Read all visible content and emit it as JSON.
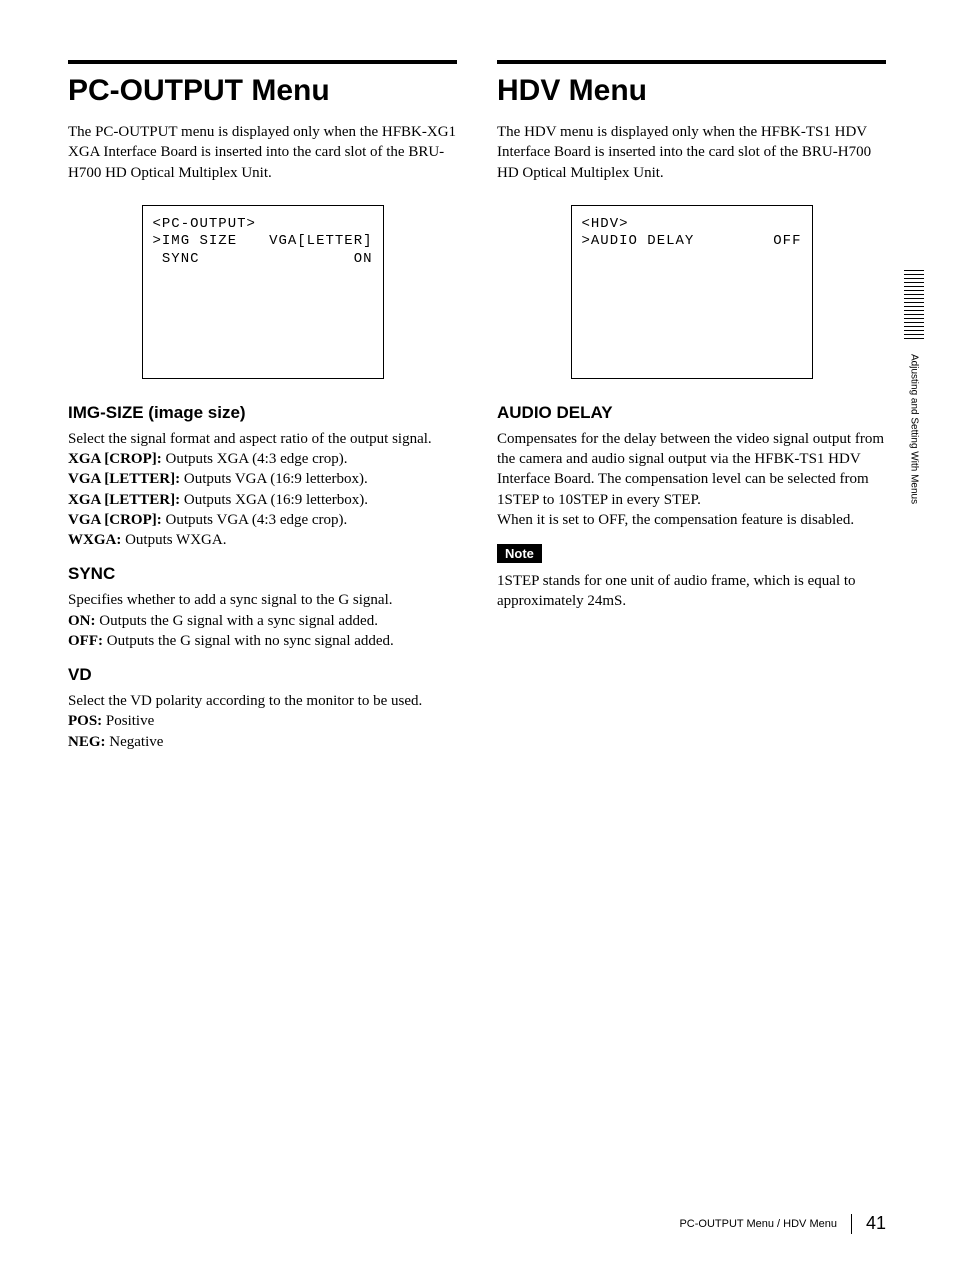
{
  "left": {
    "heading": "PC-OUTPUT Menu",
    "intro": "The PC-OUTPUT menu is displayed only when the HFBK-XG1 XGA Interface Board is inserted into the card slot of the BRU-H700 HD Optical Multiplex Unit.",
    "menu": {
      "title": "<PC-OUTPUT>",
      "rows": [
        {
          "label": ">IMG SIZE",
          "value": "VGA[LETTER]"
        },
        {
          "label": " SYNC",
          "value": "ON"
        }
      ]
    },
    "sec1": {
      "h": "IMG-SIZE (image size)",
      "p": "Select the signal format and aspect ratio of the output signal.",
      "opts": [
        {
          "k": "XGA [CROP]:",
          "v": " Outputs XGA (4:3 edge crop)."
        },
        {
          "k": "VGA [LETTER]:",
          "v": " Outputs VGA (16:9 letterbox)."
        },
        {
          "k": "XGA [LETTER]:",
          "v": " Outputs XGA (16:9 letterbox)."
        },
        {
          "k": "VGA [CROP]:",
          "v": " Outputs VGA (4:3 edge crop)."
        },
        {
          "k": "WXGA:",
          "v": " Outputs WXGA."
        }
      ]
    },
    "sec2": {
      "h": "SYNC",
      "p": "Specifies whether to add a sync signal to the G signal.",
      "opts": [
        {
          "k": "ON:",
          "v": " Outputs the G signal with a sync signal added."
        },
        {
          "k": "OFF:",
          "v": " Outputs the G signal with no sync signal added."
        }
      ]
    },
    "sec3": {
      "h": "VD",
      "p": "Select the VD polarity according to the monitor to be used.",
      "opts": [
        {
          "k": "POS:",
          "v": " Positive"
        },
        {
          "k": "NEG:",
          "v": " Negative"
        }
      ]
    }
  },
  "right": {
    "heading": "HDV Menu",
    "intro": "The HDV menu is displayed only when the HFBK-TS1 HDV Interface Board is inserted into the card slot of the BRU-H700 HD Optical Multiplex Unit.",
    "menu": {
      "title": "<HDV>",
      "rows": [
        {
          "label": ">AUDIO DELAY",
          "value": "OFF"
        }
      ]
    },
    "sec1": {
      "h": "AUDIO DELAY",
      "p1": "Compensates for the delay between the video signal output from the camera and audio signal output via the HFBK-TS1 HDV Interface Board. The compensation level can be selected from 1STEP to 10STEP in every STEP.",
      "p2": "When it is set to OFF, the compensation feature is disabled."
    },
    "note_label": "Note",
    "note_text": "1STEP stands for one unit of audio frame, which is equal to approximately 24mS."
  },
  "side_label": "Adjusting and Setting With Menus",
  "footer_title": "PC-OUTPUT Menu / HDV Menu",
  "page_number": "41"
}
